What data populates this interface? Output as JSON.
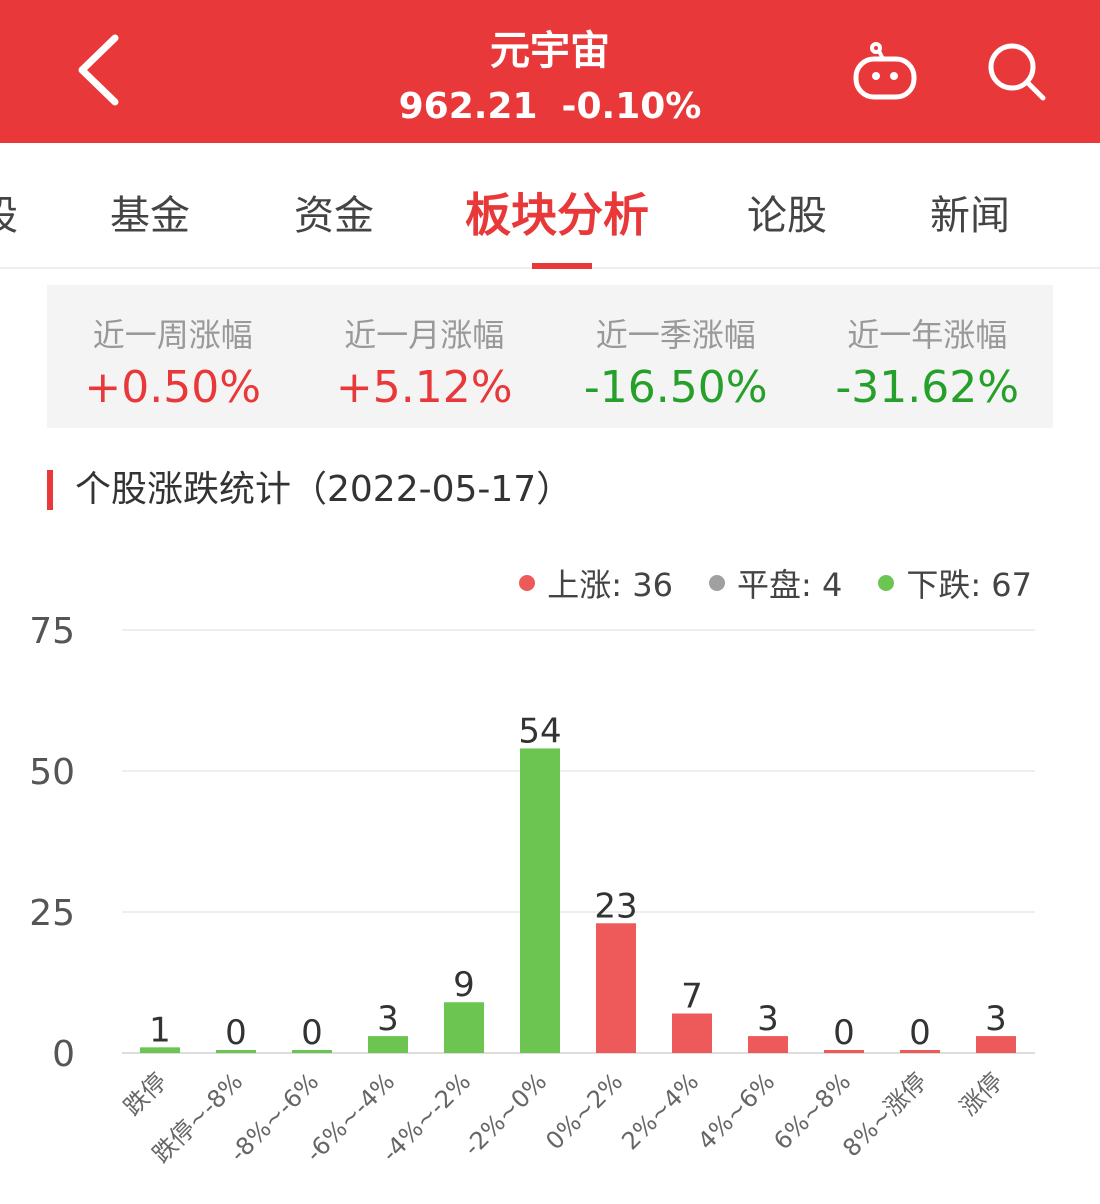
{
  "header": {
    "title": "元宇宙",
    "price": "962.21",
    "change": "-0.10%",
    "back_icon": "chevron-left-icon",
    "robot_icon": "robot-icon",
    "search_icon": "search-icon"
  },
  "tabs": [
    {
      "label": "股"
    },
    {
      "label": "基金"
    },
    {
      "label": "资金"
    },
    {
      "label": "板块分析",
      "active": true
    },
    {
      "label": "论股"
    },
    {
      "label": "新闻"
    }
  ],
  "stats": [
    {
      "label": "近一周涨幅",
      "value": "+0.50%",
      "dir": "up"
    },
    {
      "label": "近一月涨幅",
      "value": "+5.12%",
      "dir": "up"
    },
    {
      "label": "近一季涨幅",
      "value": "-16.50%",
      "dir": "down"
    },
    {
      "label": "近一年涨幅",
      "value": "-31.62%",
      "dir": "down"
    }
  ],
  "section_title": "个股涨跌统计（2022-05-17）",
  "legend": [
    {
      "label": "上涨: 36",
      "color": "#ee5a5a"
    },
    {
      "label": "平盘: 4",
      "color": "#a0a0a0"
    },
    {
      "label": "下跌: 67",
      "color": "#6cc551"
    }
  ],
  "chart_data": {
    "type": "bar",
    "categories": [
      "跌停",
      "跌停~-8%",
      "-8%~-6%",
      "-6%~-4%",
      "-4%~-2%",
      "-2%~0%",
      "0%~2%",
      "2%~4%",
      "4%~6%",
      "6%~8%",
      "8%~涨停",
      "涨停"
    ],
    "values": [
      1,
      0,
      0,
      3,
      9,
      54,
      23,
      7,
      3,
      0,
      0,
      3
    ],
    "colors": [
      "#6cc551",
      "#6cc551",
      "#6cc551",
      "#6cc551",
      "#6cc551",
      "#6cc551",
      "#ee5a5a",
      "#ee5a5a",
      "#ee5a5a",
      "#ee5a5a",
      "#ee5a5a",
      "#ee5a5a"
    ],
    "yticks": [
      0,
      25,
      50,
      75
    ],
    "ylim": [
      0,
      75
    ],
    "grid": true
  }
}
